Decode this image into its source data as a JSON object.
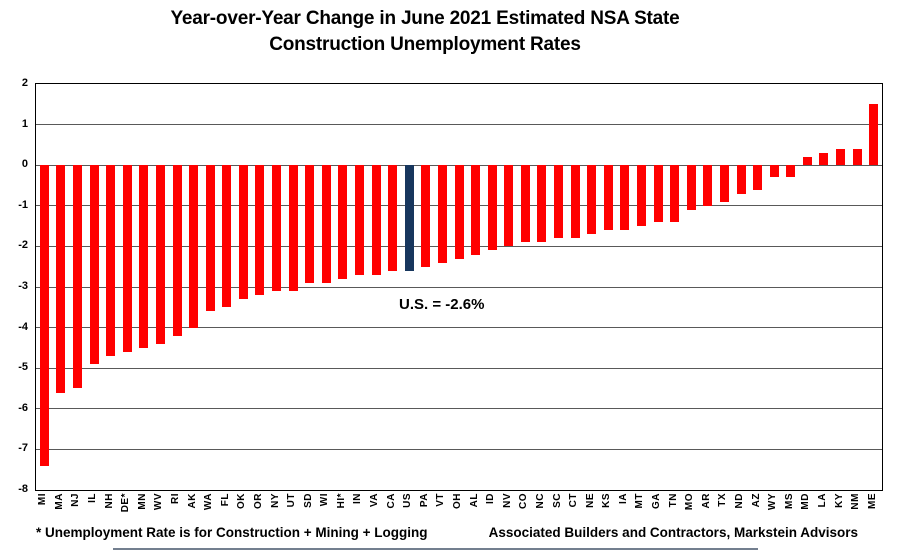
{
  "title": {
    "line1": "Year-over-Year Change in June 2021 Estimated NSA State",
    "line2": "Construction Unemployment Rates"
  },
  "chart_data": {
    "type": "bar",
    "title": "Year-over-Year Change in June 2021 Estimated NSA State Construction Unemployment Rates",
    "categories": [
      "MI",
      "MA",
      "NJ",
      "IL",
      "NH",
      "DE*",
      "MN",
      "WV",
      "RI",
      "AK",
      "WA",
      "FL",
      "OK",
      "OR",
      "NY",
      "UT",
      "SD",
      "WI",
      "HI*",
      "IN",
      "VA",
      "CA",
      "US",
      "PA",
      "VT",
      "OH",
      "AL",
      "ID",
      "NV",
      "CO",
      "NC",
      "SC",
      "CT",
      "NE",
      "KS",
      "IA",
      "MT",
      "GA",
      "TN",
      "MO",
      "AR",
      "TX",
      "ND",
      "AZ",
      "WY",
      "MS",
      "MD",
      "LA",
      "KY",
      "NM",
      "ME"
    ],
    "values": [
      -7.4,
      -5.6,
      -5.5,
      -4.9,
      -4.7,
      -4.6,
      -4.5,
      -4.4,
      -4.2,
      -4.0,
      -3.6,
      -3.5,
      -3.3,
      -3.2,
      -3.1,
      -3.1,
      -2.9,
      -2.9,
      -2.8,
      -2.7,
      -2.7,
      -2.6,
      -2.6,
      -2.5,
      -2.4,
      -2.3,
      -2.2,
      -2.1,
      -2.0,
      -1.9,
      -1.9,
      -1.8,
      -1.8,
      -1.7,
      -1.6,
      -1.6,
      -1.5,
      -1.4,
      -1.4,
      -1.1,
      -1.0,
      -0.9,
      -0.7,
      -0.6,
      -0.3,
      -0.3,
      0.2,
      0.3,
      0.4,
      0.4,
      1.5
    ],
    "highlight_category": "US",
    "annotation": "U.S. = -2.6%",
    "xlabel": "",
    "ylabel": "",
    "ylim": [
      -8,
      2
    ],
    "yticks": [
      2,
      1,
      0,
      -1,
      -2,
      -3,
      -4,
      -5,
      -6,
      -7,
      -8
    ],
    "grid": true,
    "legend": "none",
    "colors": {
      "bar": "#FF0000",
      "highlight": "#17365D",
      "gridline": "#595959",
      "plot_border": "#000000",
      "text": "#000000",
      "background": "#FFFFFF"
    }
  },
  "footnote": "* Unemployment Rate is for Construction + Mining + Logging",
  "attribution": "Associated Builders and Contractors, Markstein Advisors"
}
